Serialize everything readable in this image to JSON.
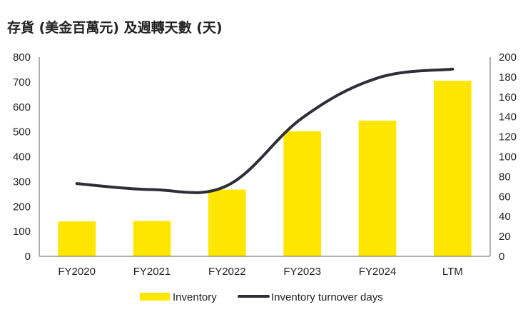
{
  "chart_data": {
    "type": "bar",
    "title": "存貨 (美金百萬元) 及週轉天數 (天)",
    "categories": [
      "FY2020",
      "FY2021",
      "FY2022",
      "FY2023",
      "FY2024",
      "LTM"
    ],
    "series": [
      {
        "name": "Inventory",
        "type": "bar",
        "axis": "left",
        "color": "#FFE600",
        "values": [
          140,
          142,
          268,
          502,
          545,
          705
        ]
      },
      {
        "name": "Inventory turnover days",
        "type": "line",
        "axis": "right",
        "color": "#2E2E38",
        "values": [
          73,
          67,
          71,
          139,
          179,
          188
        ]
      }
    ],
    "ylim_left": [
      0,
      800
    ],
    "yticks_left": [
      0,
      100,
      200,
      300,
      400,
      500,
      600,
      700,
      800
    ],
    "ylim_right": [
      0,
      200
    ],
    "yticks_right": [
      0,
      20,
      40,
      60,
      80,
      100,
      120,
      140,
      160,
      180,
      200
    ],
    "grid": false,
    "legend_position": "bottom"
  }
}
